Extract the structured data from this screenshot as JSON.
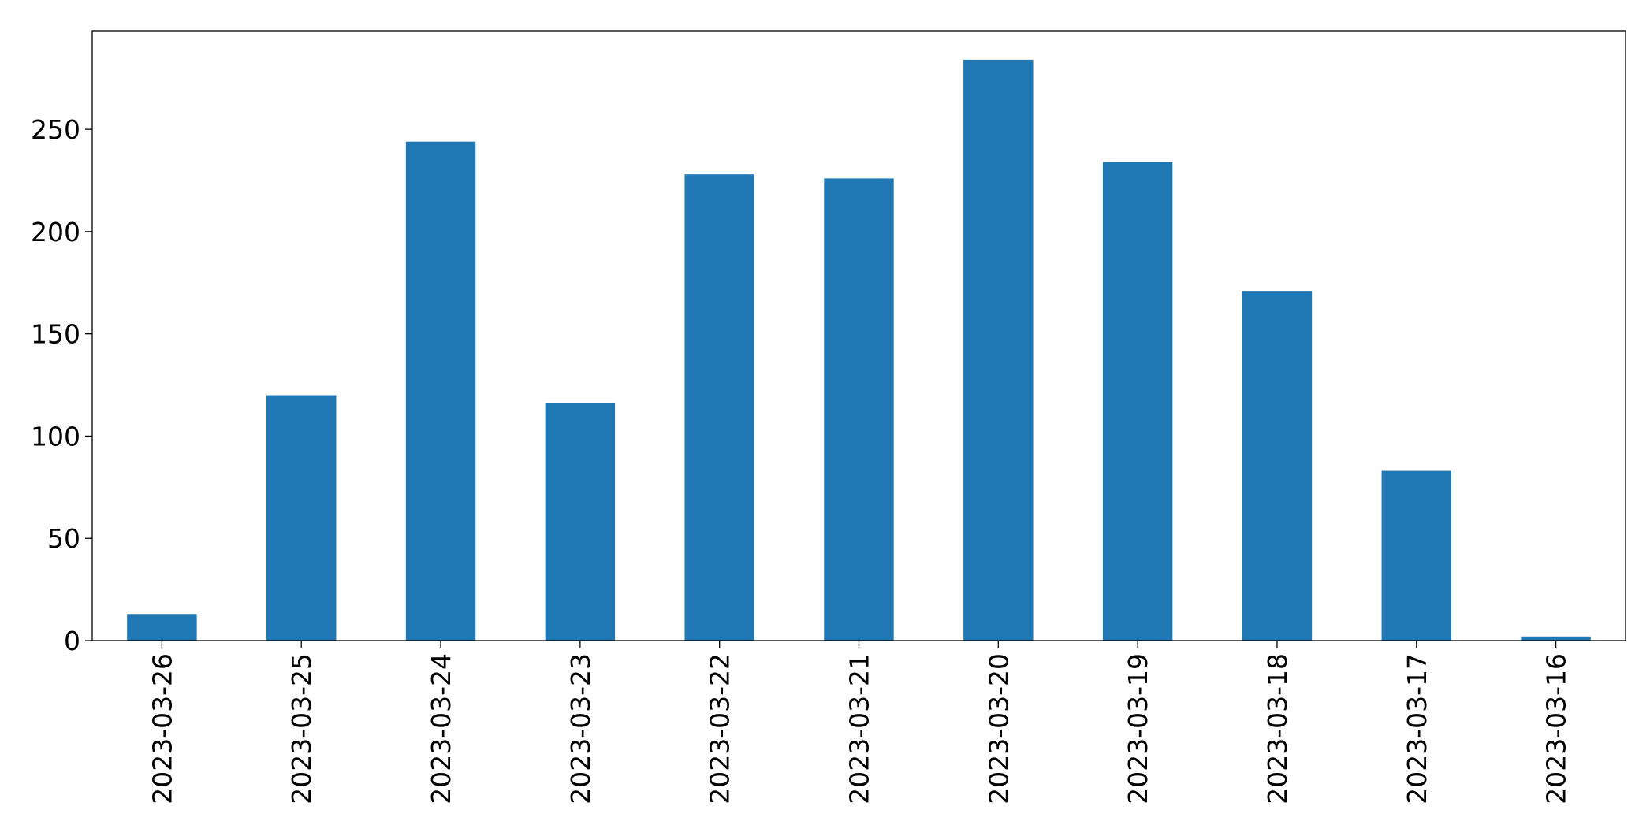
{
  "chart_data": {
    "type": "bar",
    "categories": [
      "2023-03-26",
      "2023-03-25",
      "2023-03-24",
      "2023-03-23",
      "2023-03-22",
      "2023-03-21",
      "2023-03-20",
      "2023-03-19",
      "2023-03-18",
      "2023-03-17",
      "2023-03-16"
    ],
    "values": [
      13,
      120,
      244,
      116,
      228,
      226,
      284,
      234,
      171,
      83,
      2
    ],
    "color": "#1f77b4",
    "ylim": [
      0,
      298.2
    ],
    "yticks": [
      0,
      50,
      100,
      150,
      200,
      250
    ],
    "grid": false
  }
}
